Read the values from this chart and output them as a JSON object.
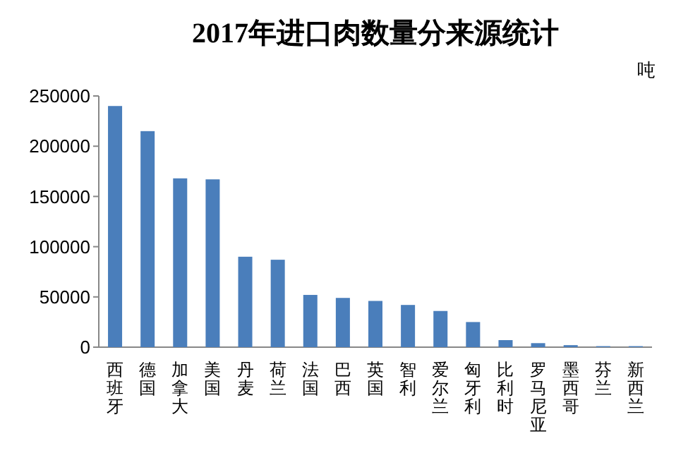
{
  "chart_data": {
    "type": "bar",
    "title": "2017年进口肉数量分来源统计",
    "ylabel": "吨",
    "categories": [
      "西班牙",
      "德国",
      "加拿大",
      "美国",
      "丹麦",
      "荷兰",
      "法国",
      "巴西",
      "英国",
      "智利",
      "爱尔兰",
      "匈牙利",
      "比利时",
      "罗马尼亚",
      "墨西哥",
      "芬兰",
      "新西兰"
    ],
    "values": [
      240000,
      215000,
      168000,
      167000,
      90000,
      87000,
      52000,
      49000,
      46000,
      42000,
      36000,
      25000,
      7000,
      4000,
      2000,
      1000,
      1000
    ],
    "color": "#4a7ebb",
    "ylim": [
      0,
      250000
    ],
    "yticks": [
      0,
      50000,
      100000,
      150000,
      200000,
      250000
    ],
    "grid": false
  }
}
